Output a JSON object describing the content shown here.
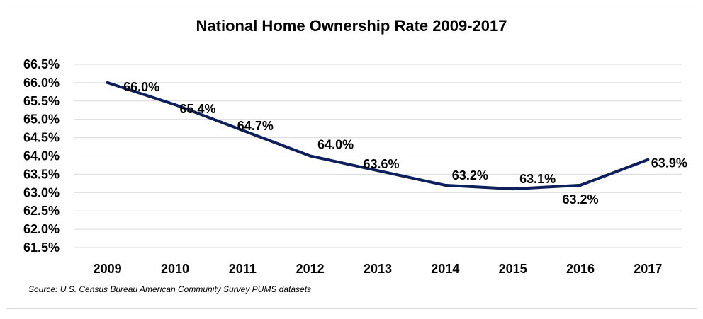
{
  "chart_data": {
    "type": "line",
    "title": "National Home Ownership Rate 2009-2017",
    "source": "Source: U.S. Census Bureau American Community Survey PUMS datasets",
    "categories": [
      "2009",
      "2010",
      "2011",
      "2012",
      "2013",
      "2014",
      "2015",
      "2016",
      "2017"
    ],
    "values": [
      66.0,
      65.4,
      64.7,
      64.0,
      63.6,
      63.2,
      63.1,
      63.2,
      63.9
    ],
    "data_labels": [
      "66.0%",
      "65.4%",
      "64.7%",
      "64.0%",
      "63.6%",
      "63.2%",
      "63.1%",
      "63.2%",
      "63.9%"
    ],
    "y_ticks": [
      "66.5%",
      "66.0%",
      "65.5%",
      "65.0%",
      "64.5%",
      "64.0%",
      "63.5%",
      "63.0%",
      "62.5%",
      "62.0%",
      "61.5%"
    ],
    "y_tick_values": [
      66.5,
      66.0,
      65.5,
      65.0,
      64.5,
      64.0,
      63.5,
      63.0,
      62.5,
      62.0,
      61.5
    ],
    "ylim": [
      61.5,
      66.5
    ],
    "grid": true,
    "line_color": "#0d1f5c",
    "grid_color": "#d9d9d9"
  }
}
